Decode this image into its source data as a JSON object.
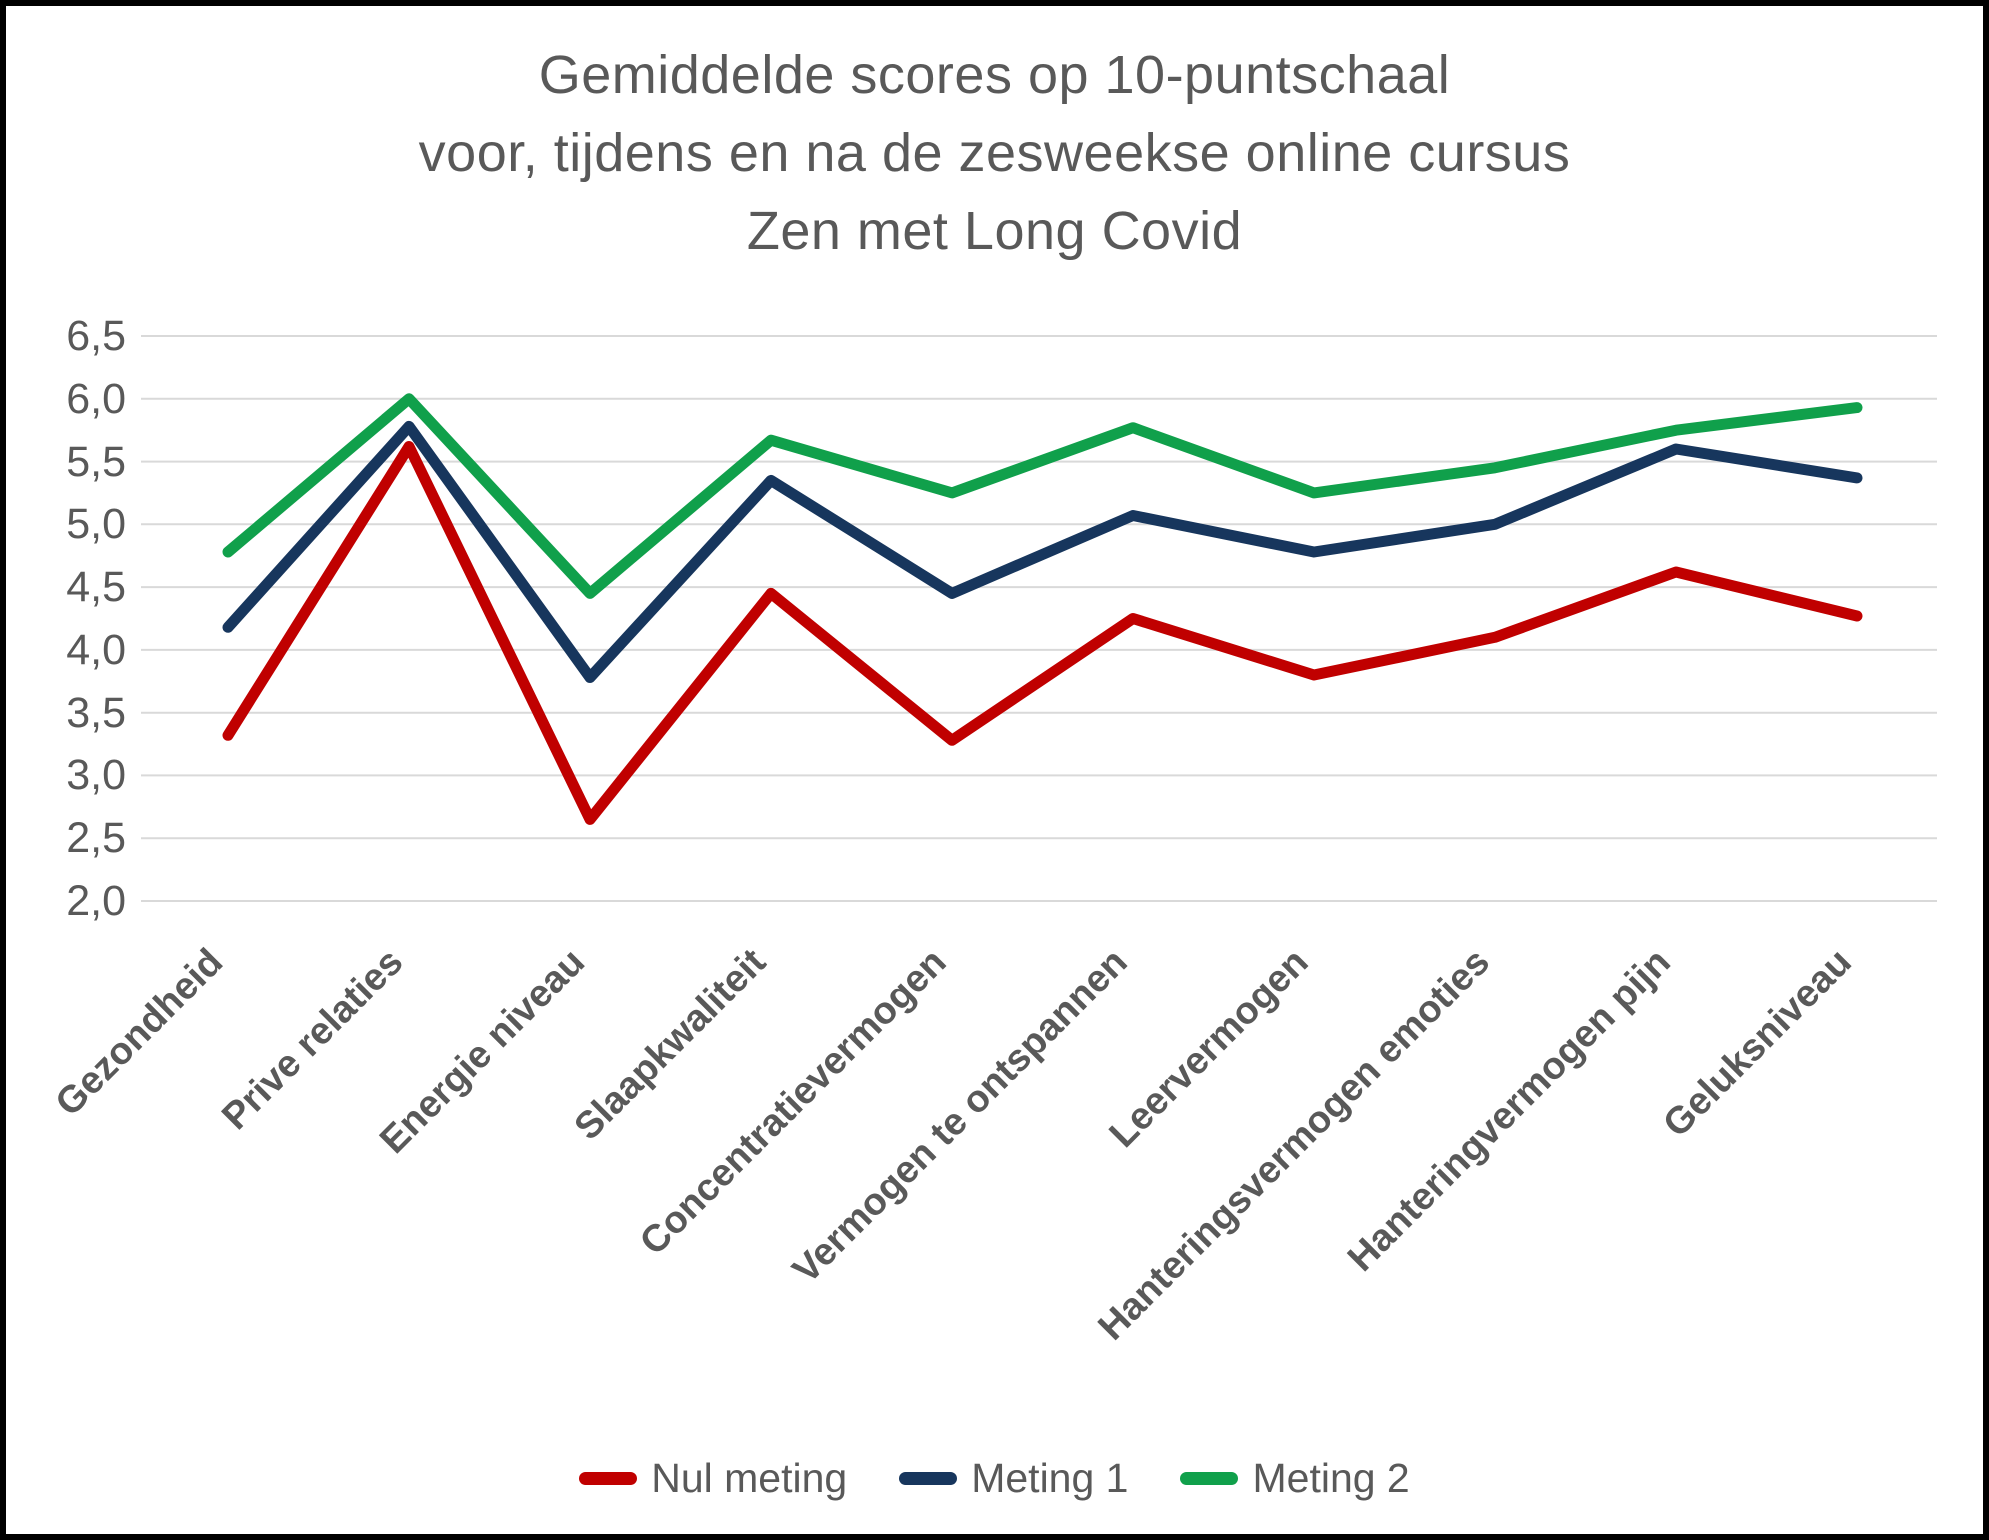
{
  "title": {
    "lines": [
      "Gemiddelde scores op 10-puntschaal",
      "voor, tijdens en na de zesweekse online cursus",
      "Zen met Long Covid"
    ]
  },
  "chart_data": {
    "type": "line",
    "title": "Gemiddelde scores op 10-puntschaal voor, tijdens en na de zesweekse online cursus Zen met Long Covid",
    "categories": [
      "Gezondheid",
      "Prive relaties",
      "Energie niveau",
      "Slaapkwaliteit",
      "Concentratievermogen",
      "Vermogen te ontspannen",
      "Leervermogen",
      "Hanteringsvermogen emoties",
      "Hanteringvermogen pijn",
      "Geluksniveau"
    ],
    "series": [
      {
        "name": "Nul meting",
        "color": "#C00000",
        "values": [
          3.32,
          5.62,
          2.65,
          4.45,
          3.28,
          4.25,
          3.8,
          4.1,
          4.62,
          4.27
        ]
      },
      {
        "name": "Meting 1",
        "color": "#17365D",
        "values": [
          4.18,
          5.78,
          3.78,
          5.35,
          4.45,
          5.07,
          4.78,
          5.0,
          5.6,
          5.37
        ]
      },
      {
        "name": "Meting 2",
        "color": "#10A04B",
        "values": [
          4.78,
          6.0,
          4.45,
          5.67,
          5.25,
          5.77,
          5.25,
          5.45,
          5.75,
          5.93
        ]
      }
    ],
    "yaxis": {
      "min": 2.0,
      "max": 6.5,
      "step": 0.5,
      "decimal_separator": ",",
      "tick_labels": [
        "2,0",
        "2,5",
        "3,0",
        "3,5",
        "4,0",
        "4,5",
        "5,0",
        "5,5",
        "6,0",
        "6,5"
      ]
    },
    "grid": true,
    "gridline_color": "#D9D9D9",
    "legend_position": "bottom"
  }
}
